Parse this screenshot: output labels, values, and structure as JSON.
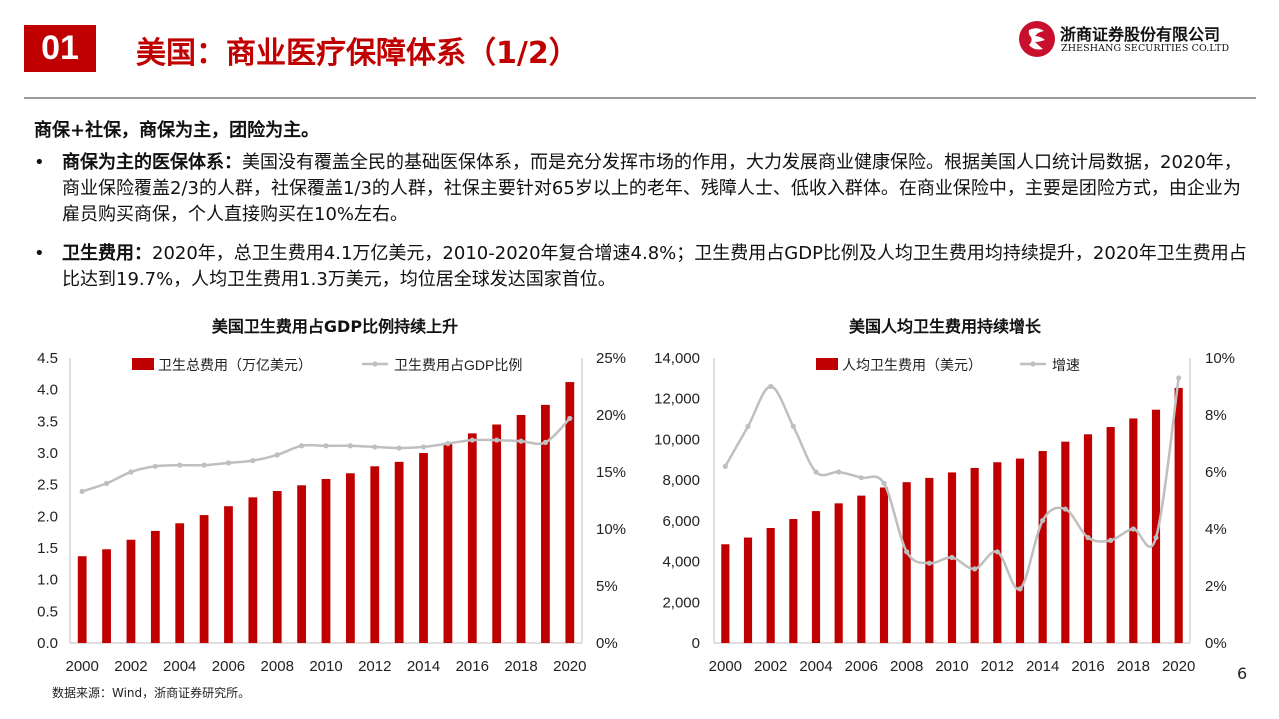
{
  "header": {
    "badge": "01",
    "title": "美国：商业医疗保障体系（1/2）",
    "logo_cn": "浙商证券股份有限公司",
    "logo_en": "ZHESHANG SECURITIES CO.LTD"
  },
  "lead": "商保+社保，商保为主，团险为主。",
  "bullets": [
    {
      "bold": "商保为主的医保体系：",
      "text": "美国没有覆盖全民的基础医保体系，而是充分发挥市场的作用，大力发展商业健康保险。根据美国人口统计局数据，2020年，商业保险覆盖2/3的人群，社保覆盖1/3的人群，社保主要针对65岁以上的老年、残障人士、低收入群体。在商业保险中，主要是团险方式，由企业为雇员购买商保，个人直接购买在10%左右。"
    },
    {
      "bold": "卫生费用：",
      "text": "2020年，总卫生费用4.1万亿美元，2010-2020年复合增速4.8%；卫生费用占GDP比例及人均卫生费用均持续提升，2020年卫生费用占比达到19.7%，人均卫生费用1.3万美元，均位居全球发达国家首位。"
    }
  ],
  "colors": {
    "accent": "#c00000",
    "bar": "#c00000",
    "line": "#bfbfbf"
  },
  "chart_data": [
    {
      "type": "bar",
      "title": "美国卫生费用占GDP比例持续上升",
      "x": [
        2000,
        2001,
        2002,
        2003,
        2004,
        2005,
        2006,
        2007,
        2008,
        2009,
        2010,
        2011,
        2012,
        2013,
        2014,
        2015,
        2016,
        2017,
        2018,
        2019,
        2020
      ],
      "x_tick_labels": [
        "2000",
        "2002",
        "2004",
        "2006",
        "2008",
        "2010",
        "2012",
        "2014",
        "2016",
        "2018",
        "2020"
      ],
      "series": [
        {
          "name": "卫生总费用（万亿美元）",
          "type": "bar",
          "axis": "left",
          "values": [
            1.37,
            1.48,
            1.63,
            1.77,
            1.89,
            2.02,
            2.16,
            2.3,
            2.4,
            2.49,
            2.59,
            2.68,
            2.79,
            2.86,
            3.0,
            3.16,
            3.31,
            3.45,
            3.6,
            3.76,
            4.12
          ]
        },
        {
          "name": "卫生费用占GDP比例",
          "type": "line",
          "axis": "right",
          "values": [
            13.3,
            14.0,
            15.0,
            15.5,
            15.6,
            15.6,
            15.8,
            16.0,
            16.5,
            17.3,
            17.3,
            17.3,
            17.2,
            17.1,
            17.2,
            17.5,
            17.8,
            17.8,
            17.7,
            17.6,
            19.7
          ]
        }
      ],
      "ylim_left": [
        0,
        4.5
      ],
      "y_left_ticks": [
        "0.0",
        "0.5",
        "1.0",
        "1.5",
        "2.0",
        "2.5",
        "3.0",
        "3.5",
        "4.0",
        "4.5"
      ],
      "ylim_right": [
        0,
        25
      ],
      "y_right_ticks": [
        "0%",
        "5%",
        "10%",
        "15%",
        "20%",
        "25%"
      ],
      "legend": "top"
    },
    {
      "type": "bar",
      "title": "美国人均卫生费用持续增长",
      "x": [
        2000,
        2001,
        2002,
        2003,
        2004,
        2005,
        2006,
        2007,
        2008,
        2009,
        2010,
        2011,
        2012,
        2013,
        2014,
        2015,
        2016,
        2017,
        2018,
        2019,
        2020
      ],
      "x_tick_labels": [
        "2000",
        "2002",
        "2004",
        "2006",
        "2008",
        "2010",
        "2012",
        "2014",
        "2016",
        "2018",
        "2020"
      ],
      "series": [
        {
          "name": "人均卫生费用（美元）",
          "type": "bar",
          "axis": "left",
          "values": [
            4850,
            5180,
            5650,
            6090,
            6480,
            6860,
            7240,
            7640,
            7900,
            8110,
            8380,
            8600,
            8880,
            9060,
            9430,
            9890,
            10250,
            10610,
            11030,
            11460,
            12530
          ]
        },
        {
          "name": "增速",
          "type": "line",
          "axis": "right",
          "values": [
            6.2,
            7.6,
            9.0,
            7.6,
            6.0,
            6.0,
            5.8,
            5.6,
            3.2,
            2.8,
            3.0,
            2.6,
            3.2,
            1.9,
            4.3,
            4.7,
            3.7,
            3.6,
            4.0,
            3.7,
            9.3
          ]
        }
      ],
      "ylim_left": [
        0,
        14000
      ],
      "y_left_ticks": [
        "0",
        "2,000",
        "4,000",
        "6,000",
        "8,000",
        "10,000",
        "12,000",
        "14,000"
      ],
      "ylim_right": [
        0,
        10
      ],
      "y_right_ticks": [
        "0%",
        "2%",
        "4%",
        "6%",
        "8%",
        "10%"
      ],
      "legend": "top"
    }
  ],
  "source": "数据来源：Wind，浙商证券研究所。",
  "page_number": "6"
}
